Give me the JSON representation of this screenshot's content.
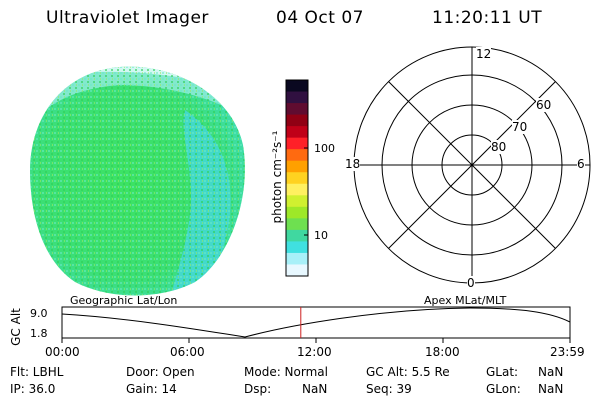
{
  "header": {
    "instrument": "Ultraviolet Imager",
    "date": "04 Oct 07",
    "time": "11:20:11 UT"
  },
  "colors": {
    "earth_main": "#37e06a",
    "earth_cyan": "#3fe0d8",
    "earth_speckle": "#9fe8f0",
    "marker_line": "#cc2020"
  },
  "colorbar": {
    "unit_label": "photon cm⁻²s⁻¹",
    "tick_100": "100",
    "tick_10": "10",
    "colors": [
      "#0a0820",
      "#301040",
      "#600c30",
      "#900014",
      "#c00018",
      "#ff2028",
      "#ff6a10",
      "#ffa000",
      "#ffd220",
      "#fff060",
      "#d0f030",
      "#9ee828",
      "#6ee050",
      "#40d8a0",
      "#40e0e0",
      "#a8f0f8",
      "#e8f8ff"
    ]
  },
  "polar": {
    "mlt_top": "12",
    "mlt_left": "18",
    "mlt_right": "6",
    "mlt_bottom": "0",
    "lat_60": "60",
    "lat_70": "70",
    "lat_80": "80"
  },
  "orbit": {
    "left_caption": "Geographic Lat/Lon",
    "right_caption": "Apex MLat/MLT",
    "axis_label": "GC Alt",
    "y_top": "9.0",
    "y_bottom": "1.8",
    "time_ticks": [
      "00:00",
      "06:00",
      "12:00",
      "18:00",
      "23:59"
    ],
    "current_time_fraction": 0.47
  },
  "status": {
    "flt": "Flt: LBHL",
    "ip": "IP: 36.0",
    "door": "Door: Open",
    "gain": "Gain: 14",
    "mode": "Mode: Normal",
    "dsp": "Dsp:",
    "dsp_val": "NaN",
    "gcalt": "GC Alt: 5.5 Re",
    "seq": "Seq: 39",
    "glat": "GLat:",
    "glat_val": "NaN",
    "glon": "GLon:",
    "glon_val": "NaN"
  }
}
